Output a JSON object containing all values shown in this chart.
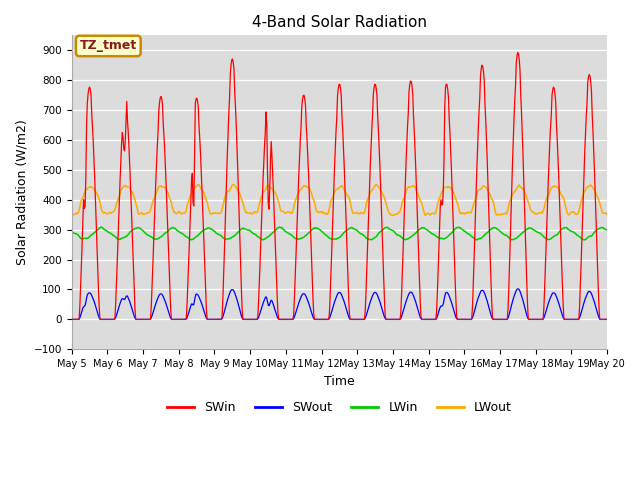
{
  "title": "4-Band Solar Radiation",
  "xlabel": "Time",
  "ylabel": "Solar Radiation (W/m2)",
  "ylim": [
    -100,
    950
  ],
  "yticks": [
    -100,
    0,
    100,
    200,
    300,
    400,
    500,
    600,
    700,
    800,
    900
  ],
  "annotation_text": "TZ_tmet",
  "annotation_color": "#8b1a1a",
  "annotation_bg": "#ffffcc",
  "annotation_edge": "#cc8800",
  "bg_color": "#dcdcdc",
  "fig_color": "#ffffff",
  "legend_entries": [
    "SWin",
    "SWout",
    "LWin",
    "LWout"
  ],
  "legend_colors": [
    "#ff0000",
    "#0000ff",
    "#00cc00",
    "#ffaa00"
  ],
  "n_days": 15,
  "xtick_start_day": 5,
  "xtick_end_day": 20,
  "swin_color": "#ff0000",
  "swout_color": "#0000ff",
  "lwin_color": "#00cc00",
  "lwout_color": "#ffaa00",
  "linewidth": 0.9,
  "grid_color": "#ffffff",
  "title_fontsize": 11,
  "axis_label_fontsize": 9,
  "tick_fontsize": 7,
  "legend_fontsize": 9
}
